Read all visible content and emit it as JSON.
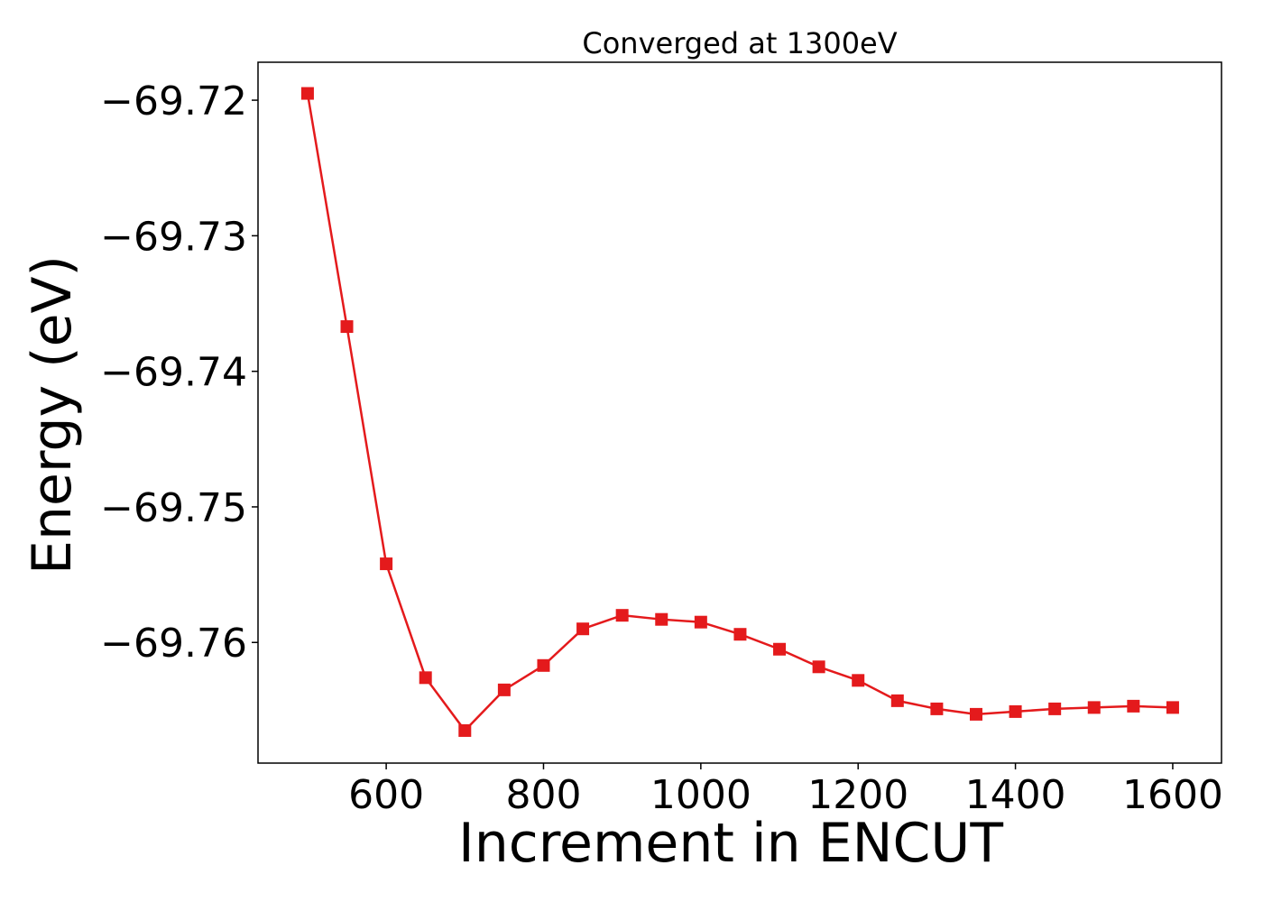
{
  "chart_data": {
    "type": "line",
    "title": "Converged at 1300eV",
    "xlabel": "Increment in ENCUT",
    "ylabel": "Energy (eV)",
    "xlim": [
      437,
      1662
    ],
    "ylim": [
      -69.7689,
      -69.7172
    ],
    "xticks": [
      600,
      800,
      1000,
      1200,
      1400,
      1600
    ],
    "xtick_labels": [
      "600",
      "800",
      "1000",
      "1200",
      "1400",
      "1600"
    ],
    "yticks": [
      -69.72,
      -69.73,
      -69.74,
      -69.75,
      -69.76
    ],
    "ytick_labels": [
      "−69.72",
      "−69.73",
      "−69.74",
      "−69.75",
      "−69.76"
    ],
    "grid": false,
    "marker": "square",
    "color": "#e41a1c",
    "x": [
      500,
      550,
      600,
      650,
      700,
      750,
      800,
      850,
      900,
      950,
      1000,
      1050,
      1100,
      1150,
      1200,
      1250,
      1300,
      1350,
      1400,
      1450,
      1500,
      1550,
      1600
    ],
    "y": [
      -69.7195,
      -69.7367,
      -69.7542,
      -69.7626,
      -69.7665,
      -69.7635,
      -69.7617,
      -69.759,
      -69.758,
      -69.7583,
      -69.7585,
      -69.7594,
      -69.7605,
      -69.7618,
      -69.7628,
      -69.7643,
      -69.7649,
      -69.7653,
      -69.7651,
      -69.7649,
      -69.7648,
      -69.7647,
      -69.7648
    ]
  }
}
